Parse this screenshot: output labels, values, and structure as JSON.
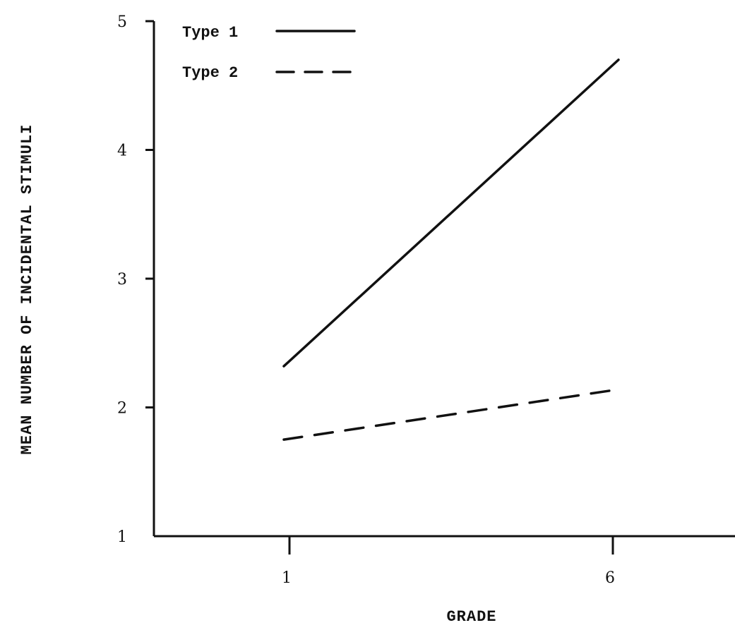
{
  "chart_data": {
    "type": "line",
    "xlabel": "GRADE",
    "ylabel": "MEAN NUMBER OF INCIDENTAL STIMULI",
    "x_ticks": [
      "1",
      "6"
    ],
    "y_ticks": [
      "1",
      "2",
      "3",
      "4",
      "5"
    ],
    "ylim": [
      1,
      5
    ],
    "x": [
      1,
      6
    ],
    "series": [
      {
        "name": "Type 1",
        "style": "solid",
        "values": [
          2.32,
          4.7
        ]
      },
      {
        "name": "Type 2",
        "style": "dashed",
        "values": [
          1.75,
          2.14
        ]
      }
    ],
    "legend": {
      "placement": "top-left"
    },
    "grid": false
  }
}
